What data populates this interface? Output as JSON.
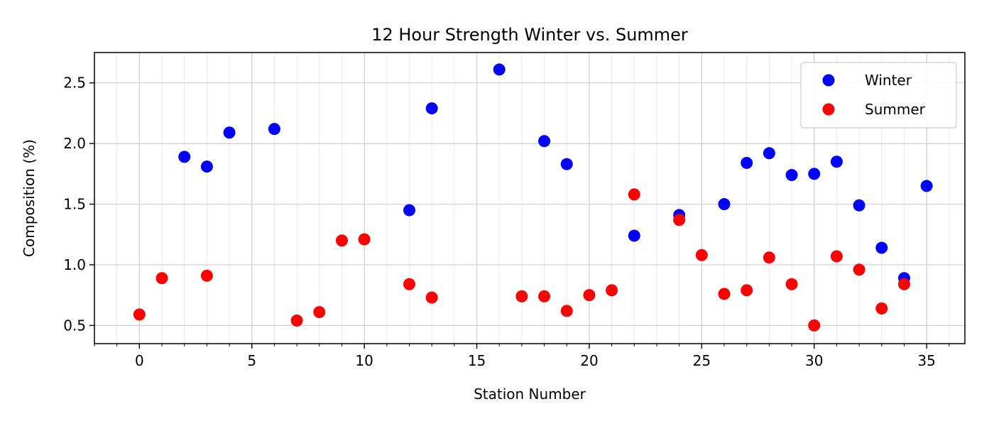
{
  "chart_data": {
    "type": "scatter",
    "title": "12 Hour Strength Winter vs. Summer",
    "xlabel": "Station Number",
    "ylabel": "Composition (%)",
    "xlim": [
      -2,
      36.7
    ],
    "ylim": [
      0.35,
      2.75
    ],
    "xticks": [
      0,
      5,
      10,
      15,
      20,
      25,
      30,
      35
    ],
    "yticks": [
      0.5,
      1.0,
      1.5,
      2.0,
      2.5
    ],
    "ytick_labels": [
      "0.5",
      "1.0",
      "1.5",
      "2.0",
      "2.5"
    ],
    "grid": true,
    "minor_grid": true,
    "legend_position": "top-right",
    "series": [
      {
        "name": "Winter",
        "color": "#0000ff",
        "points": [
          [
            2,
            1.89
          ],
          [
            3,
            1.81
          ],
          [
            4,
            2.09
          ],
          [
            6,
            2.12
          ],
          [
            12,
            1.45
          ],
          [
            13,
            2.29
          ],
          [
            16,
            2.61
          ],
          [
            18,
            2.02
          ],
          [
            19,
            1.83
          ],
          [
            22,
            1.24
          ],
          [
            24,
            1.41
          ],
          [
            26,
            1.5
          ],
          [
            27,
            1.84
          ],
          [
            28,
            1.92
          ],
          [
            29,
            1.74
          ],
          [
            30,
            1.75
          ],
          [
            31,
            1.85
          ],
          [
            32,
            1.49
          ],
          [
            33,
            1.14
          ],
          [
            34,
            0.89
          ],
          [
            35,
            1.65
          ]
        ]
      },
      {
        "name": "Summer",
        "color": "#ff0000",
        "points": [
          [
            0,
            0.59
          ],
          [
            1,
            0.89
          ],
          [
            3,
            0.91
          ],
          [
            7,
            0.54
          ],
          [
            8,
            0.61
          ],
          [
            9,
            1.2
          ],
          [
            10,
            1.21
          ],
          [
            12,
            0.84
          ],
          [
            13,
            0.73
          ],
          [
            17,
            0.74
          ],
          [
            18,
            0.74
          ],
          [
            19,
            0.62
          ],
          [
            20,
            0.75
          ],
          [
            21,
            0.79
          ],
          [
            22,
            1.58
          ],
          [
            24,
            1.37
          ],
          [
            25,
            1.08
          ],
          [
            26,
            0.76
          ],
          [
            27,
            0.79
          ],
          [
            28,
            1.06
          ],
          [
            29,
            0.84
          ],
          [
            30,
            0.5
          ],
          [
            31,
            1.07
          ],
          [
            32,
            0.96
          ],
          [
            33,
            0.64
          ],
          [
            34,
            0.84
          ]
        ]
      }
    ]
  }
}
